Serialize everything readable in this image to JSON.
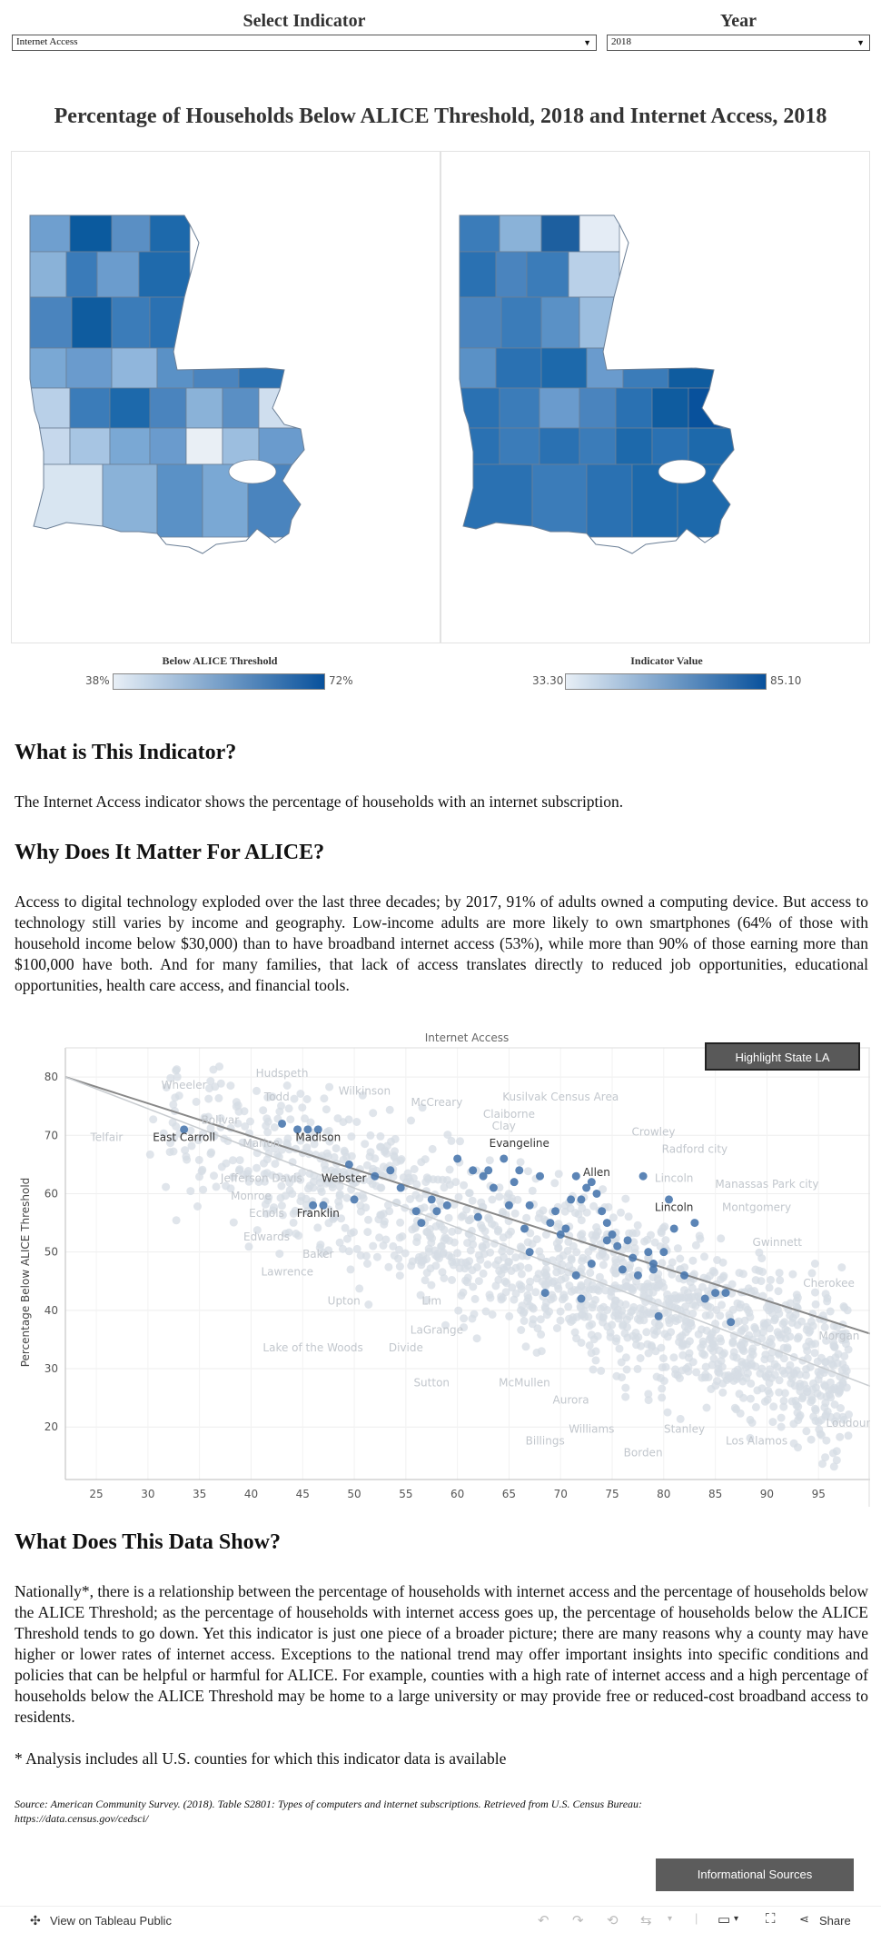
{
  "controls": {
    "indicator_label": "Select Indicator",
    "indicator_value": "Internet Access",
    "year_label": "Year",
    "year_value": "2018"
  },
  "dashboard_title": "Percentage of Households Below ALICE Threshold, 2018 and Internet Access, 2018",
  "legends": {
    "left": {
      "title": "Below ALICE Threshold",
      "min": "38%",
      "max": "72%",
      "color_low": "#e8eff6",
      "color_high": "#08519c"
    },
    "right": {
      "title": "Indicator Value",
      "min": "33.30",
      "max": "85.10",
      "color_low": "#e8eff6",
      "color_high": "#08519c"
    }
  },
  "sections": {
    "what_heading": "What is This Indicator?",
    "what_text": "The Internet Access indicator shows the percentage of households with an internet subscription.",
    "why_heading": "Why Does It Matter For ALICE?",
    "why_text": "Access to digital technology exploded over the last three decades; by 2017, 91% of adults owned a computing device. But access to technology still varies by income and geography. Low-income adults are more likely to own smartphones (64% of those with household income below $30,000) than to have broadband internet access (53%), while more than 90% of those earning more than $100,000 have both. And for many families, that lack of access translates directly to reduced job opportunities, educational opportunities, health care access, and financial tools.",
    "show_heading": "What Does This Data Show?",
    "show_text": "Nationally*, there is a relationship between the percentage of households with internet access and the percentage of households below the ALICE Threshold; as the percentage of households with internet access goes up, the percentage of households below the ALICE Threshold tends to go down. Yet this indicator is just one piece of a broader picture; there are many reasons why a county may have higher or lower rates of internet access. Exceptions to the national trend may offer important insights into specific conditions and policies that can be helpful or harmful for ALICE. For example, counties with a high rate of internet access and a high percentage of households below the ALICE Threshold may be home to a large university or may provide free or reduced-cost broadband access to residents.",
    "footnote": "* Analysis includes all U.S. counties for which this indicator data is available",
    "source": "Source: American Community Survey. (2018). Table S2801: Types of computers and internet subscriptions. Retrieved from U.S. Census Bureau: https://data.census.gov/cedsci/"
  },
  "buttons": {
    "highlight": "Highlight State LA",
    "info_sources": "Informational Sources"
  },
  "toolbar": {
    "view_label": "View on Tableau Public",
    "share_label": "Share"
  },
  "chart_data": {
    "type": "scatter",
    "title": "Internet Access",
    "xlabel": "",
    "ylabel": "Percentage Below ALICE Threshold",
    "xlim": [
      22,
      100
    ],
    "ylim": [
      11,
      85
    ],
    "xticks": [
      25,
      30,
      35,
      40,
      45,
      50,
      55,
      60,
      65,
      70,
      75,
      80,
      85,
      90,
      95
    ],
    "yticks": [
      20,
      30,
      40,
      50,
      60,
      70,
      80
    ],
    "grid": true,
    "colors": {
      "highlight": "#4a78ae",
      "background": "#d5dce4",
      "trend_state": "#888888",
      "trend_national": "#c8ccd0"
    },
    "trend_lines": [
      {
        "name": "Louisiana",
        "from": [
          22,
          80
        ],
        "to": [
          100,
          36
        ]
      },
      {
        "name": "National",
        "from": [
          22,
          80
        ],
        "to": [
          100,
          27
        ]
      }
    ],
    "highlighted_points": [
      {
        "x": 33.5,
        "y": 71
      },
      {
        "x": 43,
        "y": 72
      },
      {
        "x": 44.5,
        "y": 71
      },
      {
        "x": 45.5,
        "y": 71
      },
      {
        "x": 46.5,
        "y": 71
      },
      {
        "x": 47,
        "y": 58
      },
      {
        "x": 46,
        "y": 58
      },
      {
        "x": 49.5,
        "y": 65
      },
      {
        "x": 50,
        "y": 59
      },
      {
        "x": 52,
        "y": 63
      },
      {
        "x": 53.5,
        "y": 64
      },
      {
        "x": 54.5,
        "y": 61
      },
      {
        "x": 56,
        "y": 57
      },
      {
        "x": 56.5,
        "y": 55
      },
      {
        "x": 57.5,
        "y": 59
      },
      {
        "x": 58,
        "y": 57
      },
      {
        "x": 59,
        "y": 58
      },
      {
        "x": 60,
        "y": 66
      },
      {
        "x": 61.5,
        "y": 64
      },
      {
        "x": 62.5,
        "y": 63
      },
      {
        "x": 63,
        "y": 64
      },
      {
        "x": 63.5,
        "y": 61
      },
      {
        "x": 64.5,
        "y": 66
      },
      {
        "x": 65,
        "y": 58
      },
      {
        "x": 65.5,
        "y": 62
      },
      {
        "x": 66,
        "y": 64
      },
      {
        "x": 67,
        "y": 58
      },
      {
        "x": 68,
        "y": 63
      },
      {
        "x": 69,
        "y": 55
      },
      {
        "x": 69.5,
        "y": 57
      },
      {
        "x": 70,
        "y": 53
      },
      {
        "x": 70.5,
        "y": 54
      },
      {
        "x": 71,
        "y": 59
      },
      {
        "x": 71.5,
        "y": 63
      },
      {
        "x": 72,
        "y": 59
      },
      {
        "x": 72.5,
        "y": 61
      },
      {
        "x": 73,
        "y": 62
      },
      {
        "x": 73.5,
        "y": 60
      },
      {
        "x": 74,
        "y": 57
      },
      {
        "x": 74.5,
        "y": 55
      },
      {
        "x": 75,
        "y": 53
      },
      {
        "x": 75.5,
        "y": 51
      },
      {
        "x": 76,
        "y": 47
      },
      {
        "x": 76.5,
        "y": 52
      },
      {
        "x": 77,
        "y": 49
      },
      {
        "x": 77.5,
        "y": 46
      },
      {
        "x": 78,
        "y": 63
      },
      {
        "x": 79,
        "y": 48
      },
      {
        "x": 79.5,
        "y": 39
      },
      {
        "x": 80,
        "y": 50
      },
      {
        "x": 80.5,
        "y": 59
      },
      {
        "x": 81,
        "y": 54
      },
      {
        "x": 82,
        "y": 46
      },
      {
        "x": 83,
        "y": 55
      },
      {
        "x": 84,
        "y": 42
      },
      {
        "x": 85,
        "y": 43
      },
      {
        "x": 86,
        "y": 43
      },
      {
        "x": 86.5,
        "y": 38
      },
      {
        "x": 73,
        "y": 48
      },
      {
        "x": 72,
        "y": 42
      },
      {
        "x": 68.5,
        "y": 43
      },
      {
        "x": 67,
        "y": 50
      },
      {
        "x": 71.5,
        "y": 46
      },
      {
        "x": 74.5,
        "y": 52
      },
      {
        "x": 79,
        "y": 47
      },
      {
        "x": 78.5,
        "y": 50
      },
      {
        "x": 62,
        "y": 56
      },
      {
        "x": 66.5,
        "y": 54
      }
    ],
    "labels": [
      {
        "text": "East Carroll",
        "x": 33.5,
        "y": 69,
        "style": "dark"
      },
      {
        "text": "Madison",
        "x": 46.5,
        "y": 69,
        "style": "dark"
      },
      {
        "text": "Evangeline",
        "x": 66,
        "y": 68,
        "style": "dark"
      },
      {
        "text": "Allen",
        "x": 73.5,
        "y": 63,
        "style": "dark"
      },
      {
        "text": "Webster",
        "x": 49,
        "y": 62,
        "style": "dark"
      },
      {
        "text": "Franklin",
        "x": 46.5,
        "y": 56,
        "style": "dark"
      },
      {
        "text": "Lincoln",
        "x": 81,
        "y": 57,
        "style": "dark"
      },
      {
        "text": "Hudspeth",
        "x": 43,
        "y": 80,
        "style": "light"
      },
      {
        "text": "Wheeler",
        "x": 33.5,
        "y": 78,
        "style": "light"
      },
      {
        "text": "Todd",
        "x": 42.5,
        "y": 76,
        "style": "light"
      },
      {
        "text": "Wilkinson",
        "x": 51,
        "y": 77,
        "style": "light"
      },
      {
        "text": "McCreary",
        "x": 58,
        "y": 75,
        "style": "light"
      },
      {
        "text": "Kusilvak Census Area",
        "x": 70,
        "y": 76,
        "style": "light"
      },
      {
        "text": "Claiborne",
        "x": 65,
        "y": 73,
        "style": "light"
      },
      {
        "text": "Clay",
        "x": 64.5,
        "y": 71,
        "style": "light"
      },
      {
        "text": "Crowley",
        "x": 79,
        "y": 70,
        "style": "light"
      },
      {
        "text": "Radford city",
        "x": 83,
        "y": 67,
        "style": "light"
      },
      {
        "text": "Bolivar",
        "x": 37,
        "y": 72,
        "style": "light"
      },
      {
        "text": "Telfair",
        "x": 26,
        "y": 69,
        "style": "light"
      },
      {
        "text": "Marion",
        "x": 41,
        "y": 68,
        "style": "light"
      },
      {
        "text": "Jefferson Davis",
        "x": 41,
        "y": 62,
        "style": "light"
      },
      {
        "text": "Lincoln",
        "x": 81,
        "y": 62,
        "style": "light"
      },
      {
        "text": "Manassas Park city",
        "x": 90,
        "y": 61,
        "style": "light"
      },
      {
        "text": "Montgomery",
        "x": 89,
        "y": 57,
        "style": "light"
      },
      {
        "text": "Monroe",
        "x": 40,
        "y": 59,
        "style": "light"
      },
      {
        "text": "Echols",
        "x": 41.5,
        "y": 56,
        "style": "light"
      },
      {
        "text": "Edwards",
        "x": 41.5,
        "y": 52,
        "style": "light"
      },
      {
        "text": "Gwinnett",
        "x": 91,
        "y": 51,
        "style": "light"
      },
      {
        "text": "Baker",
        "x": 46.5,
        "y": 49,
        "style": "light"
      },
      {
        "text": "Lawrence",
        "x": 43.5,
        "y": 46,
        "style": "light"
      },
      {
        "text": "Cherokee",
        "x": 96,
        "y": 44,
        "style": "light"
      },
      {
        "text": "Upton",
        "x": 49,
        "y": 41,
        "style": "light"
      },
      {
        "text": "Lim",
        "x": 57.5,
        "y": 41,
        "style": "light"
      },
      {
        "text": "LaGrange",
        "x": 58,
        "y": 36,
        "style": "light"
      },
      {
        "text": "Morgan",
        "x": 97,
        "y": 35,
        "style": "light"
      },
      {
        "text": "Lake of the Woods",
        "x": 46,
        "y": 33,
        "style": "light"
      },
      {
        "text": "Divide",
        "x": 55,
        "y": 33,
        "style": "light"
      },
      {
        "text": "Sutton",
        "x": 57.5,
        "y": 27,
        "style": "light"
      },
      {
        "text": "McMullen",
        "x": 66.5,
        "y": 27,
        "style": "light"
      },
      {
        "text": "Aurora",
        "x": 71,
        "y": 24,
        "style": "light"
      },
      {
        "text": "Loudoun",
        "x": 98,
        "y": 20,
        "style": "light"
      },
      {
        "text": "Williams",
        "x": 73,
        "y": 19,
        "style": "light"
      },
      {
        "text": "Stanley",
        "x": 82,
        "y": 19,
        "style": "light"
      },
      {
        "text": "Billings",
        "x": 68.5,
        "y": 17,
        "style": "light"
      },
      {
        "text": "Los Alamos",
        "x": 89,
        "y": 17,
        "style": "light"
      },
      {
        "text": "Borden",
        "x": 78,
        "y": 15,
        "style": "light"
      }
    ]
  }
}
